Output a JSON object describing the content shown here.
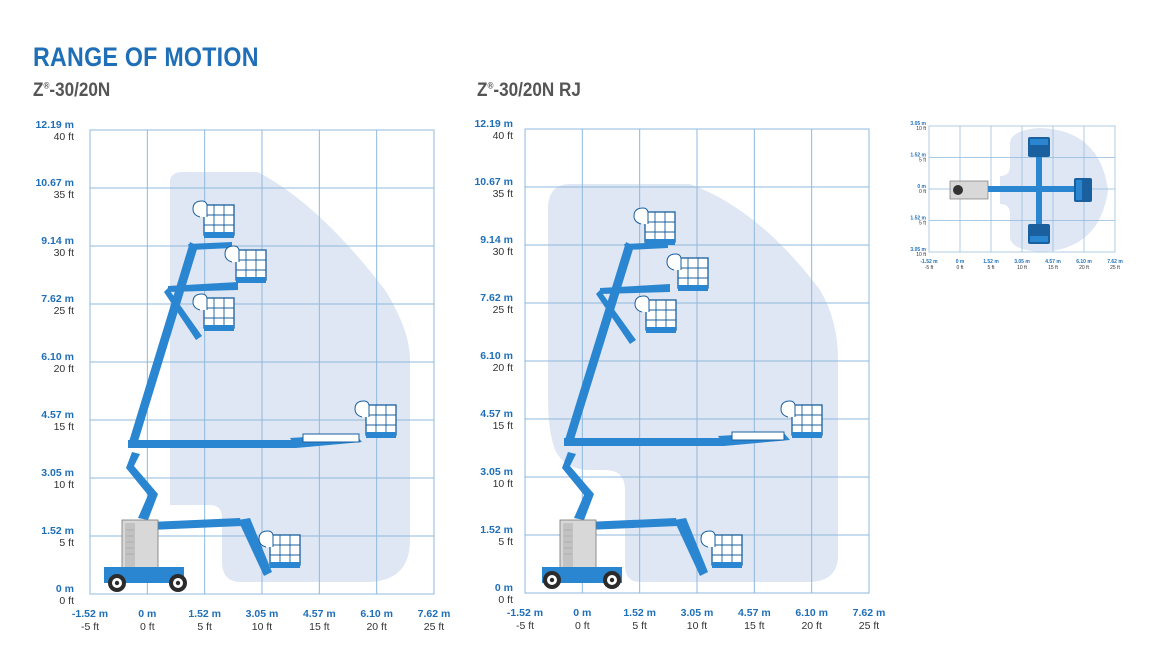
{
  "page": {
    "title": "RANGE OF MOTION"
  },
  "charts": [
    {
      "model_prefix": "Z",
      "model_sup": "®",
      "model_suffix": "-30/20N",
      "y_labels": [
        {
          "m": "12.19 m",
          "ft": "40 ft"
        },
        {
          "m": "10.67 m",
          "ft": "35 ft"
        },
        {
          "m": "9.14 m",
          "ft": "30 ft"
        },
        {
          "m": "7.62 m",
          "ft": "25 ft"
        },
        {
          "m": "6.10 m",
          "ft": "20 ft"
        },
        {
          "m": "4.57 m",
          "ft": "15 ft"
        },
        {
          "m": "3.05 m",
          "ft": "10 ft"
        },
        {
          "m": "1.52 m",
          "ft": "5 ft"
        },
        {
          "m": "0 m",
          "ft": "0 ft"
        }
      ],
      "x_labels": [
        {
          "m": "-1.52 m",
          "ft": "-5 ft"
        },
        {
          "m": "0 m",
          "ft": "0 ft"
        },
        {
          "m": "1.52 m",
          "ft": "5 ft"
        },
        {
          "m": "3.05 m",
          "ft": "10 ft"
        },
        {
          "m": "4.57 m",
          "ft": "15 ft"
        },
        {
          "m": "6.10 m",
          "ft": "20 ft"
        },
        {
          "m": "7.62 m",
          "ft": "25 ft"
        }
      ]
    },
    {
      "model_prefix": "Z",
      "model_sup": "®",
      "model_suffix": "-30/20N RJ",
      "y_labels": [
        {
          "m": "12.19 m",
          "ft": "40 ft"
        },
        {
          "m": "10.67 m",
          "ft": "35 ft"
        },
        {
          "m": "9.14 m",
          "ft": "30 ft"
        },
        {
          "m": "7.62 m",
          "ft": "25 ft"
        },
        {
          "m": "6.10 m",
          "ft": "20 ft"
        },
        {
          "m": "4.57 m",
          "ft": "15 ft"
        },
        {
          "m": "3.05 m",
          "ft": "10 ft"
        },
        {
          "m": "1.52 m",
          "ft": "5 ft"
        },
        {
          "m": "0 m",
          "ft": "0 ft"
        }
      ],
      "x_labels": [
        {
          "m": "-1.52 m",
          "ft": "-5 ft"
        },
        {
          "m": "0 m",
          "ft": "0 ft"
        },
        {
          "m": "1.52 m",
          "ft": "5 ft"
        },
        {
          "m": "3.05 m",
          "ft": "10 ft"
        },
        {
          "m": "4.57 m",
          "ft": "15 ft"
        },
        {
          "m": "6.10 m",
          "ft": "20 ft"
        },
        {
          "m": "7.62 m",
          "ft": "25 ft"
        }
      ]
    }
  ],
  "top_view": {
    "y_labels": [
      {
        "m": "3.05 m",
        "ft": "10 ft"
      },
      {
        "m": "1.52 m",
        "ft": "5 ft"
      },
      {
        "m": "0 m",
        "ft": "0 ft"
      },
      {
        "m": "1.52 m",
        "ft": "5 ft"
      },
      {
        "m": "3.05 m",
        "ft": "10 ft"
      }
    ],
    "x_labels": [
      {
        "m": "-1.52 m",
        "ft": "-5 ft"
      },
      {
        "m": "0 m",
        "ft": "0 ft"
      },
      {
        "m": "1.52 m",
        "ft": "5 ft"
      },
      {
        "m": "3.05 m",
        "ft": "10 ft"
      },
      {
        "m": "4.57 m",
        "ft": "15 ft"
      },
      {
        "m": "6.10 m",
        "ft": "20 ft"
      },
      {
        "m": "7.62 m",
        "ft": "25 ft"
      }
    ]
  },
  "colors": {
    "accent": "#1e6fb7",
    "grid": "#8fb8dc",
    "envelope": "#dde6f4",
    "machine": "#2a86d1",
    "machine_dark": "#1a5f9e",
    "chassis": "#d6d6d6"
  }
}
